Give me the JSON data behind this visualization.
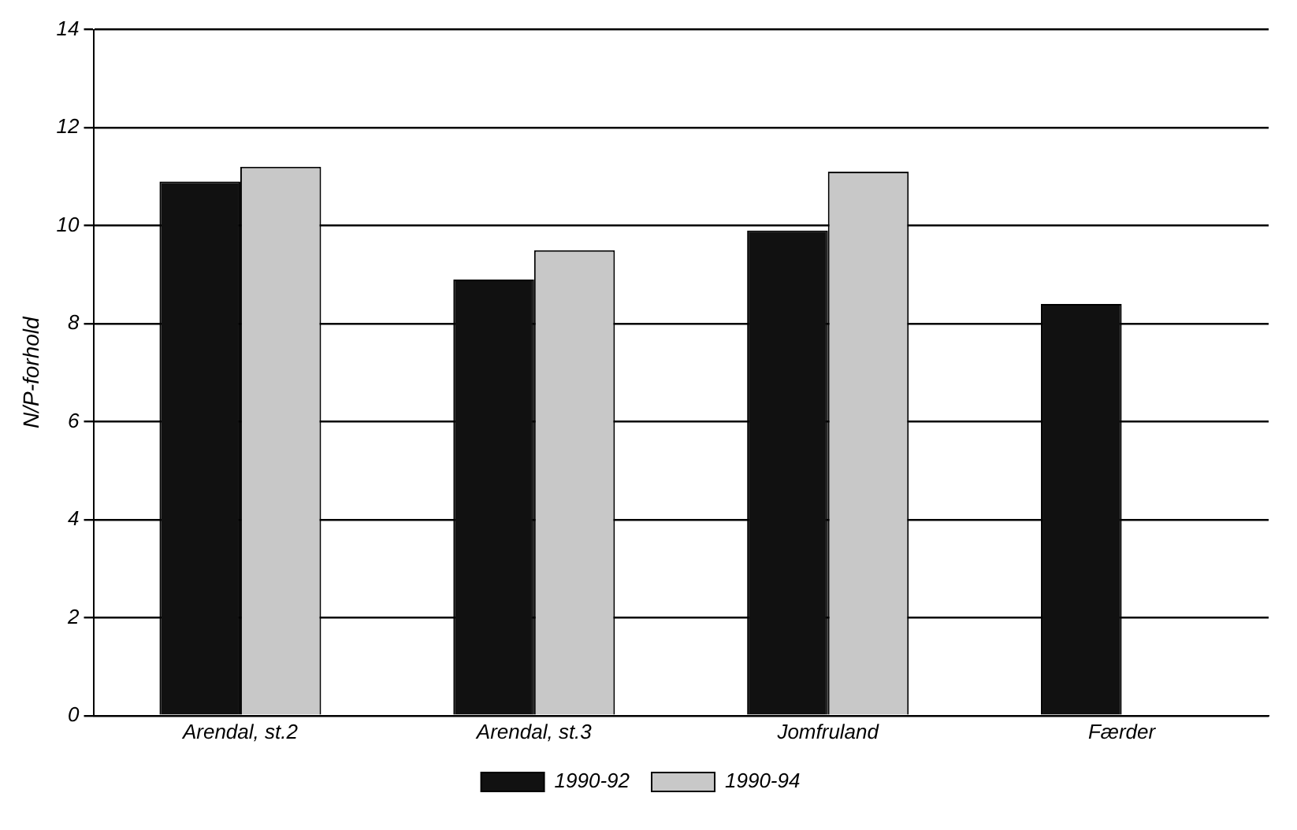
{
  "chart_data": {
    "type": "bar",
    "ylabel": "N/P-forhold",
    "categories": [
      "Arendal, st.2",
      "Arendal, st.3",
      "Jomfruland",
      "Færder"
    ],
    "series": [
      {
        "name": "1990-92",
        "color": "#111111",
        "values": [
          10.9,
          8.9,
          9.9,
          8.4
        ]
      },
      {
        "name": "1990-94",
        "color": "#c8c8c8",
        "values": [
          11.2,
          9.5,
          11.1,
          null
        ]
      }
    ],
    "ylim": [
      0,
      14
    ],
    "yticks": [
      0,
      2,
      4,
      6,
      8,
      10,
      12,
      14
    ],
    "grid": "y",
    "legend": "bottom"
  }
}
